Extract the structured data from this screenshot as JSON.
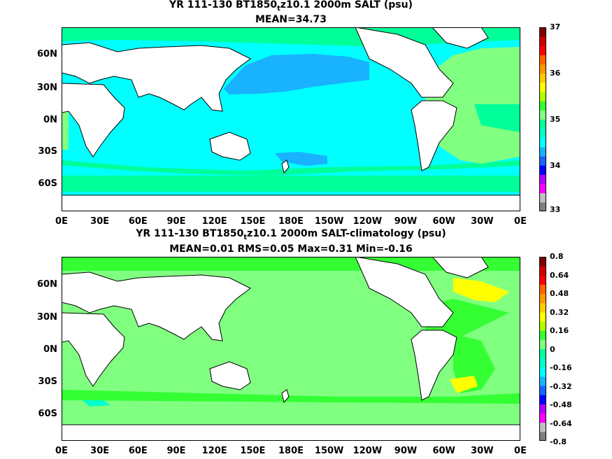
{
  "panel1": {
    "title_pre": "YR 111-130 BT1850",
    "title_sub": "t",
    "title_post": "z10.1 2000m SALT (psu)",
    "stats": "MEAN=34.73",
    "colorbar_labels": [
      "37",
      "36",
      "35",
      "34",
      "33"
    ],
    "colors": {
      "ocean_main": "#00ffff",
      "ocean_north_pacific": "#19b2ff",
      "ocean_atlantic": "#80ff80",
      "ocean_southern": "#00ff99",
      "land": "#ffffff"
    }
  },
  "panel2": {
    "title_pre": "YR 111-130 BT1850",
    "title_sub": "t",
    "title_post": "z10.1 2000m SALT-climatology (psu)",
    "stats": "MEAN=0.01   RMS=0.05   Max=0.31   Min=-0.16",
    "colorbar_labels": [
      "0.8",
      "0.64",
      "0.48",
      "0.32",
      "0.16",
      "0",
      "-0.16",
      "-0.32",
      "-0.48",
      "-0.64",
      "-0.8"
    ],
    "colors": {
      "ocean_main": "#80ff80",
      "ocean_green": "#33ff33",
      "ocean_yellow": "#ffff00",
      "ocean_cyan": "#00ffcc",
      "land": "#ffffff"
    }
  },
  "axes": {
    "y_labels": [
      "60N",
      "30N",
      "0N",
      "30S",
      "60S"
    ],
    "x_labels": [
      "0E",
      "30E",
      "60E",
      "90E",
      "120E",
      "150E",
      "180E",
      "150W",
      "120W",
      "90W",
      "60W",
      "30W",
      "0E"
    ]
  },
  "colorbar_colors": [
    "#7f7f7f",
    "#bfbfbf",
    "#ff00ff",
    "#b200ff",
    "#0000ff",
    "#1966ff",
    "#19b2ff",
    "#00ffff",
    "#00ffcc",
    "#00ff99",
    "#80ff80",
    "#33ff33",
    "#b2ff00",
    "#ffff00",
    "#ffcc00",
    "#ff9900",
    "#ff6600",
    "#ff0000",
    "#cc0000",
    "#800000"
  ]
}
